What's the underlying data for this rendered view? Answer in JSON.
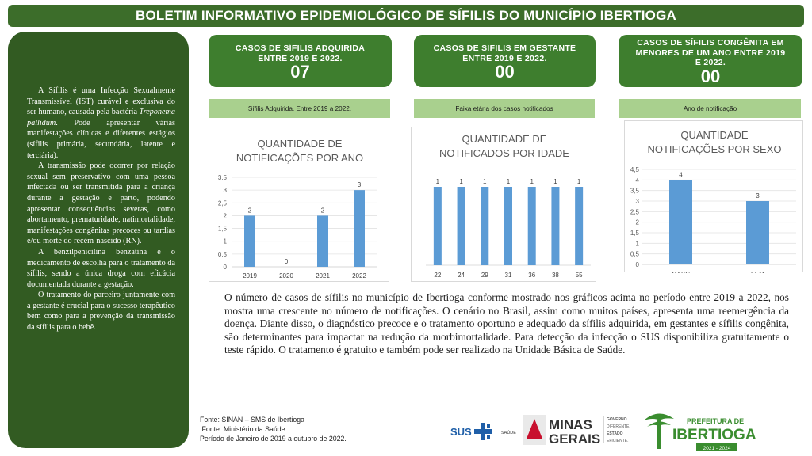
{
  "banner": {
    "title": "BOLETIM INFORMATIVO  EPIDEMIOLÓGICO DE SÍFILIS DO MUNICÍPIO IBERTIOGA"
  },
  "sidebar": {
    "paragraphs": [
      "A Sífilis é uma Infecção Sexualmente Transmissível (IST) curável e exclusiva do ser humano, causada pela bactéria Treponema pallidum. Pode apresentar várias manifestações clínicas e diferentes estágios (sífilis primária, secundária, latente e terciária).",
      "A transmissão pode ocorrer por relação sexual sem preservativo com uma pessoa infectada ou ser transmitida para a criança durante a gestação e parto, podendo apresentar consequências severas, como abortamento, prematuridade, natimortalidade, manifestações congênitas precoces ou tardias e/ou morte do recém-nascido (RN).",
      "A benzilpenicilina benzatina é o medicamento de escolha para o tratamento da sífilis, sendo a única droga com eficácia documentada durante a gestação.",
      "O tratamento do parceiro juntamente com a gestante é crucial para o sucesso terapêutico bem como para a prevenção da transmissão da sífilis para o bebê."
    ]
  },
  "cards": [
    {
      "title_lines": [
        "CASOS DE SÍFILIS ADQUIRIDA",
        "ENTRE 2019 E 2022."
      ],
      "value": "07"
    },
    {
      "title_lines": [
        "CASOS DE SÍFILIS EM GESTANTE",
        "ENTRE 2019 E 2022."
      ],
      "value": "00"
    },
    {
      "title_lines": [
        "CASOS DE SÍFILIS CONGÊNITA EM",
        "MENORES DE UM ANO ENTRE 2019",
        "E 2022."
      ],
      "value": "00"
    }
  ],
  "section_labels": [
    "Sífilis Adquirida. Entre 2019 a 2022.",
    "Faixa etária dos casos notificados",
    "Ano de notificação"
  ],
  "chart_data": [
    {
      "type": "bar",
      "title_lines": [
        "QUANTIDADE DE",
        "NOTIFICAÇÕES POR ANO"
      ],
      "categories": [
        "2019",
        "2020",
        "2021",
        "2022"
      ],
      "values": [
        2,
        0,
        2,
        3
      ],
      "ylim": [
        0,
        3.5
      ],
      "yticks": [
        "0",
        "0,5",
        "1",
        "1,5",
        "2",
        "2,5",
        "3",
        "3,5"
      ],
      "data_labels": true,
      "grid": true,
      "color": "#5b9bd5"
    },
    {
      "type": "bar",
      "title_lines": [
        "QUANTIDADE DE",
        "NOTIFICADOS POR IDADE"
      ],
      "categories": [
        "22",
        "24",
        "29",
        "31",
        "36",
        "38",
        "55"
      ],
      "values": [
        1,
        1,
        1,
        1,
        1,
        1,
        1
      ],
      "ylim": [
        0,
        1
      ],
      "yticks": [],
      "data_labels": true,
      "grid": false,
      "color": "#5b9bd5"
    },
    {
      "type": "bar",
      "title_lines": [
        "QUANTIDADE",
        "NOTIFICAÇÕES  POR SEXO"
      ],
      "categories": [
        "MASC",
        "FEM"
      ],
      "values": [
        4,
        3
      ],
      "ylim": [
        0,
        4.5
      ],
      "yticks": [
        "0",
        "0,5",
        "1",
        "1,5",
        "2",
        "2,5",
        "3",
        "3,5",
        "4",
        "4,5"
      ],
      "data_labels": true,
      "grid": true,
      "color": "#5b9bd5"
    }
  ],
  "summary": "O  número de casos de sífilis no município de Ibertioga conforme mostrado nos gráficos acima no período entre 2019 a 2022, nos mostra uma crescente no número de notificações. O cenário no Brasil, assim como muitos países, apresenta uma reemergência da doença. Diante disso, o diagnóstico precoce e o tratamento oportuno e adequado da sífilis adquirida, em gestantes e sífilis congênita, são determinantes para impactar na redução da morbimortalidade. Para detecção da infecção o SUS disponibiliza gratuitamente o teste rápido. O tratamento é gratuito e também pode ser realizado na Unidade Básica de Saúde.",
  "sources": [
    "Fonte: SINAN – SMS de Ibertioga",
    " Fonte: Ministério da Saúde",
    "Período de Janeiro de 2019 a outubro de 2022."
  ],
  "logos": {
    "sus": {
      "text": "SUS",
      "sub": "SAÚDE",
      "color": "#1f5fa8"
    },
    "minas": {
      "line1": "MINAS",
      "line2": "GERAIS",
      "tag_lines": [
        "GOVERNO",
        "DIFERENTE.",
        "ESTADO",
        "EFICIENTE."
      ],
      "color": "#c8102e"
    },
    "prefeitura": {
      "line1": "PREFEITURA DE",
      "line2": "IBERTIOGA",
      "years": "2021 - 2024",
      "color": "#3a8d2f"
    }
  }
}
